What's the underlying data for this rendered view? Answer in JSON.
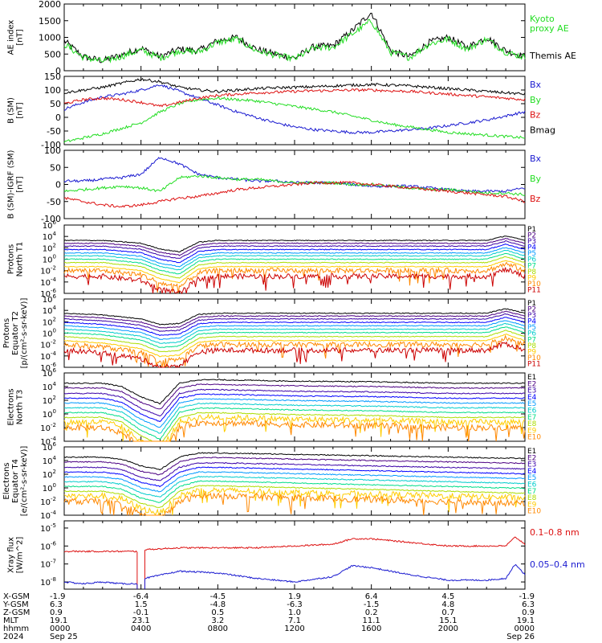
{
  "colors": {
    "black": "#000000",
    "blue": "#1a1ad0",
    "green": "#22dd22",
    "red": "#dd1111",
    "levels": [
      "#000000",
      "#4b0082",
      "#3a00a8",
      "#0000ff",
      "#0099ff",
      "#00cccc",
      "#00dd88",
      "#aadd00",
      "#ffcc00",
      "#ff8800",
      "#cc0000",
      "#880000"
    ]
  },
  "chart_data": [
    {
      "type": "line",
      "ylabel_lines": [
        "AE index",
        "[nT]"
      ],
      "ylim": [
        0,
        2000
      ],
      "yticks": [
        "0",
        "500",
        "1000",
        "1500",
        "2000"
      ],
      "legend": [
        {
          "label": "Kyoto",
          "color": "#22dd22"
        },
        {
          "label": "proxy AE",
          "color": "#22dd22"
        },
        {
          "label": "Themis AE",
          "color": "#000000"
        }
      ],
      "x_hours": [
        0,
        1,
        2,
        3,
        4,
        5,
        6,
        7,
        8,
        9,
        10,
        11,
        12,
        13,
        14,
        15,
        16,
        17,
        18,
        19,
        20,
        21,
        22,
        23,
        24
      ],
      "series": [
        {
          "name": "Themis AE",
          "color": "#000000",
          "values": [
            900,
            420,
            300,
            480,
            680,
            420,
            650,
            600,
            900,
            1000,
            650,
            500,
            380,
            720,
            750,
            1200,
            1750,
            600,
            420,
            850,
            1000,
            700,
            1000,
            600,
            420
          ]
        },
        {
          "name": "Kyoto proxy AE",
          "color": "#22dd22",
          "values": [
            800,
            400,
            280,
            430,
            620,
            380,
            600,
            560,
            850,
            950,
            600,
            470,
            350,
            680,
            700,
            1100,
            1500,
            550,
            400,
            800,
            950,
            650,
            950,
            560,
            400
          ]
        }
      ]
    },
    {
      "type": "line",
      "ylabel_lines": [
        "B (SM)",
        "[nT]"
      ],
      "ylim": [
        -100,
        150
      ],
      "yticks": [
        "-100",
        "-50",
        "0",
        "50",
        "100",
        "150"
      ],
      "legend": [
        {
          "label": "Bx",
          "color": "#1a1ad0"
        },
        {
          "label": "By",
          "color": "#22dd22"
        },
        {
          "label": "Bz",
          "color": "#dd1111"
        },
        {
          "label": "Bmag",
          "color": "#000000"
        }
      ],
      "x_hours": [
        0,
        1,
        2,
        3,
        4,
        5,
        6,
        7,
        8,
        9,
        10,
        11,
        12,
        13,
        14,
        15,
        16,
        17,
        18,
        19,
        20,
        21,
        22,
        23,
        24
      ],
      "series": [
        {
          "name": "Bx",
          "color": "#1a1ad0",
          "values": [
            30,
            55,
            75,
            85,
            100,
            120,
            95,
            70,
            45,
            20,
            0,
            -20,
            -35,
            -45,
            -50,
            -55,
            -55,
            -50,
            -45,
            -40,
            -30,
            -20,
            -10,
            5,
            20
          ]
        },
        {
          "name": "By",
          "color": "#22dd22",
          "values": [
            -90,
            -75,
            -60,
            -40,
            -20,
            20,
            50,
            65,
            70,
            65,
            60,
            50,
            40,
            30,
            20,
            5,
            -10,
            -25,
            -35,
            -45,
            -55,
            -60,
            -65,
            -70,
            -75
          ]
        },
        {
          "name": "Bz",
          "color": "#dd1111",
          "values": [
            50,
            65,
            70,
            65,
            55,
            40,
            55,
            70,
            80,
            85,
            90,
            92,
            95,
            97,
            98,
            100,
            100,
            97,
            95,
            90,
            85,
            80,
            75,
            70,
            65
          ]
        },
        {
          "name": "Bmag",
          "color": "#000000",
          "values": [
            90,
            100,
            110,
            125,
            140,
            130,
            110,
            100,
            95,
            100,
            105,
            108,
            110,
            112,
            115,
            118,
            120,
            118,
            115,
            110,
            105,
            100,
            95,
            90,
            85
          ]
        }
      ]
    },
    {
      "type": "line",
      "ylabel_lines": [
        "B (SM)-IGRF (SM)",
        "[nT]"
      ],
      "ylim": [
        -100,
        100
      ],
      "yticks": [
        "-100",
        "-50",
        "0",
        "50",
        "100"
      ],
      "legend": [
        {
          "label": "Bx",
          "color": "#1a1ad0"
        },
        {
          "label": "By",
          "color": "#22dd22"
        },
        {
          "label": "Bz",
          "color": "#dd1111"
        }
      ],
      "x_hours": [
        0,
        1,
        2,
        3,
        4,
        5,
        6,
        7,
        8,
        9,
        10,
        11,
        12,
        13,
        14,
        15,
        16,
        17,
        18,
        19,
        20,
        21,
        22,
        23,
        24
      ],
      "series": [
        {
          "name": "Bx",
          "color": "#1a1ad0",
          "values": [
            10,
            10,
            15,
            20,
            30,
            80,
            60,
            30,
            20,
            15,
            10,
            10,
            5,
            5,
            5,
            0,
            -5,
            -5,
            -5,
            -10,
            -15,
            -20,
            -20,
            -20,
            -10
          ]
        },
        {
          "name": "By",
          "color": "#22dd22",
          "values": [
            -20,
            -15,
            -10,
            -5,
            -10,
            -20,
            20,
            25,
            20,
            15,
            15,
            10,
            5,
            5,
            5,
            0,
            0,
            -5,
            -10,
            -15,
            -15,
            -20,
            -25,
            -25,
            -30
          ]
        },
        {
          "name": "Bz",
          "color": "#dd1111",
          "values": [
            -40,
            -50,
            -60,
            -65,
            -60,
            -50,
            -40,
            -35,
            -25,
            -15,
            -10,
            -5,
            0,
            5,
            5,
            5,
            0,
            -5,
            -10,
            -15,
            -20,
            -25,
            -30,
            -35,
            -50
          ]
        }
      ]
    },
    {
      "type": "line",
      "log": true,
      "ylabel_lines": [
        "Protons",
        "North T1"
      ],
      "tick_exponents": [
        -6,
        -4,
        -2,
        0,
        2,
        4,
        6
      ],
      "ylim_exp": [
        -6,
        6
      ],
      "legend": [
        "P1",
        "P2",
        "P3",
        "P4",
        "P5",
        "P6",
        "P7",
        "P8",
        "P9",
        "P10",
        "P11"
      ],
      "x_hours": [
        0,
        2,
        4,
        5,
        6,
        7,
        8,
        12,
        16,
        20,
        22,
        23,
        24
      ],
      "shape": [
        0,
        0,
        -0.5,
        -1.5,
        -2,
        -0.3,
        0,
        0,
        0,
        0,
        0,
        0.8,
        0
      ],
      "base_exponents": [
        3.3,
        2.8,
        2.3,
        1.7,
        1.1,
        0.6,
        0,
        -0.6,
        -1.3,
        -2,
        -3
      ]
    },
    {
      "type": "line",
      "log": true,
      "ylabel_lines": [
        "Protons",
        "Equator T2",
        "[p/(cm²-s-sr-keV)]"
      ],
      "tick_exponents": [
        -6,
        -4,
        -2,
        0,
        2,
        4,
        6
      ],
      "ylim_exp": [
        -6,
        6
      ],
      "legend": [
        "P1",
        "P2",
        "P3",
        "P4",
        "P5",
        "P6",
        "P7",
        "P8",
        "P9",
        "P10",
        "P11"
      ],
      "x_hours": [
        0,
        2,
        4,
        5,
        6,
        7,
        8,
        12,
        16,
        20,
        22,
        23,
        24
      ],
      "shape": [
        0,
        -0.3,
        -1,
        -2,
        -1.8,
        -0.2,
        0,
        0,
        0,
        0,
        0,
        0.8,
        0
      ],
      "base_exponents": [
        3.5,
        3,
        2.5,
        1.9,
        1.3,
        0.7,
        0.1,
        -0.6,
        -1.3,
        -2,
        -3
      ]
    },
    {
      "type": "line",
      "log": true,
      "ylabel_lines": [
        "Electrons",
        "North T3"
      ],
      "tick_exponents": [
        -4,
        -2,
        0,
        2,
        4,
        6
      ],
      "ylim_exp": [
        -4,
        6
      ],
      "legend": [
        "E1",
        "E2",
        "E3",
        "E4",
        "E5",
        "E6",
        "E7",
        "E8",
        "E9",
        "E10"
      ],
      "x_hours": [
        0,
        2,
        3,
        4,
        5,
        6,
        7,
        8,
        12,
        16,
        20,
        24
      ],
      "shape": [
        0,
        0,
        -0.5,
        -2,
        -3,
        0,
        0.5,
        0.5,
        0.3,
        0.2,
        0,
        0
      ],
      "base_exponents": [
        4.5,
        3.8,
        3,
        2.3,
        1.6,
        0.9,
        0.2,
        -0.5,
        -1.2,
        -2
      ]
    },
    {
      "type": "line",
      "log": true,
      "ylabel_lines": [
        "Electrons",
        "Equator T4",
        "[e/(cm²-s-sr-keV)]"
      ],
      "tick_exponents": [
        -4,
        -2,
        0,
        2,
        4,
        6
      ],
      "ylim_exp": [
        -4,
        6
      ],
      "legend": [
        "E1",
        "E2",
        "E3",
        "E4",
        "E5",
        "E6",
        "E7",
        "E8",
        "E9",
        "E10"
      ],
      "x_hours": [
        0,
        2,
        3,
        4,
        5,
        6,
        7,
        8,
        12,
        16,
        20,
        24
      ],
      "shape": [
        0,
        0,
        -0.3,
        -1.3,
        -1.8,
        0,
        0.6,
        0.6,
        0.4,
        0.2,
        0,
        -0.2
      ],
      "base_exponents": [
        4.5,
        3.8,
        3,
        2.3,
        1.6,
        0.9,
        0.2,
        -0.5,
        -1.2,
        -2
      ]
    },
    {
      "type": "line",
      "log": true,
      "ylabel_lines": [
        "Xray flux",
        "[W/m^2]"
      ],
      "tick_exponents": [
        -8,
        -7,
        -6,
        -5
      ],
      "ylim_exp": [
        -8.4,
        -4.6
      ],
      "legend": [
        {
          "label": "0.1–0.8 nm",
          "color": "#dd1111"
        },
        {
          "label": "0.05–0.4 nm",
          "color": "#1a1ad0"
        }
      ],
      "gap_hours": [
        3.8,
        4.2
      ],
      "series": [
        {
          "name": "0.1–0.8 nm",
          "color": "#dd1111",
          "x": [
            0,
            1,
            2,
            3,
            3.8,
            4.2,
            6,
            8,
            10,
            12,
            14,
            15,
            16,
            17,
            18,
            20,
            22,
            23,
            23.5,
            24
          ],
          "values_exp": [
            -6.3,
            -6.3,
            -6.3,
            -6.3,
            -6.3,
            -6.2,
            -6.1,
            -6.1,
            -6.1,
            -6.0,
            -5.9,
            -5.6,
            -5.6,
            -5.7,
            -5.8,
            -6.0,
            -6.0,
            -6.0,
            -5.5,
            -5.9
          ]
        },
        {
          "name": "0.05–0.4 nm",
          "color": "#1a1ad0",
          "x": [
            0,
            1,
            2,
            3,
            3.8,
            4.2,
            6,
            8,
            10,
            12,
            14,
            15,
            16,
            17,
            18,
            20,
            22,
            23,
            23.5,
            24
          ],
          "values_exp": [
            -8.0,
            -8.1,
            -8.0,
            -8.1,
            -8.1,
            -7.8,
            -7.4,
            -7.5,
            -7.8,
            -8.0,
            -7.7,
            -7.1,
            -7.2,
            -7.4,
            -7.6,
            -7.9,
            -7.9,
            -7.8,
            -7.0,
            -7.6
          ]
        }
      ]
    }
  ],
  "ephemeris": {
    "labels": [
      "X-GSM",
      "Y-GSM",
      "Z-GSM",
      "MLT",
      "hhmm",
      "2024"
    ],
    "columns": [
      {
        "x_hour": 0,
        "values": [
          "-1.9",
          "6.3",
          "0.9",
          "19.1",
          "0000",
          "Sep 25"
        ]
      },
      {
        "x_hour": 4,
        "values": [
          "-6.4",
          "1.5",
          "-0.1",
          "23.1",
          "0400",
          ""
        ]
      },
      {
        "x_hour": 8,
        "values": [
          "-4.5",
          "-4.8",
          "0.5",
          "3.2",
          "0800",
          ""
        ]
      },
      {
        "x_hour": 12,
        "values": [
          "1.9",
          "-6.3",
          "1.0",
          "7.1",
          "1200",
          ""
        ]
      },
      {
        "x_hour": 16,
        "values": [
          "6.4",
          "-1.5",
          "0.2",
          "11.1",
          "1600",
          ""
        ]
      },
      {
        "x_hour": 20,
        "values": [
          "4.5",
          "4.8",
          "0.7",
          "15.1",
          "2000",
          ""
        ]
      },
      {
        "x_hour": 24,
        "values": [
          "-1.9",
          "6.3",
          "0.9",
          "19.1",
          "0000",
          "Sep 26"
        ]
      }
    ]
  }
}
